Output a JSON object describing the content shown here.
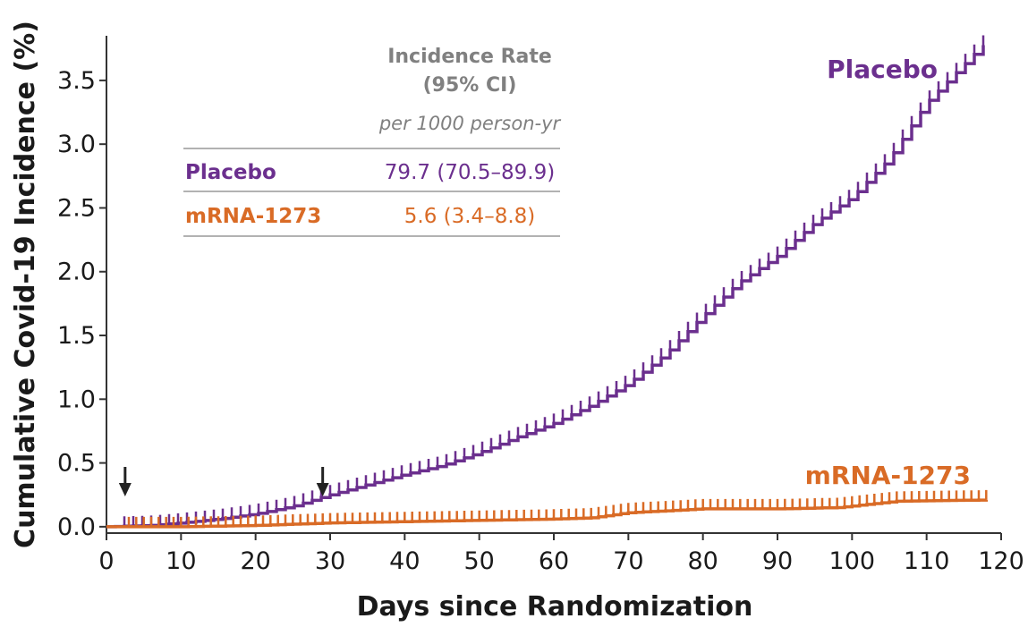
{
  "chart_data": {
    "type": "line",
    "xlabel": "Days since Randomization",
    "ylabel": "Cumulative Covid-19 Incidence (%)",
    "xlim": [
      0,
      120
    ],
    "ylim": [
      -0.05,
      3.85
    ],
    "xticks": [
      0,
      10,
      20,
      30,
      40,
      50,
      60,
      70,
      80,
      90,
      100,
      110,
      120
    ],
    "yticks": [
      0.0,
      0.5,
      1.0,
      1.5,
      2.0,
      2.5,
      3.0,
      3.5
    ],
    "ytick_labels": [
      "0.0",
      "0.5",
      "1.0",
      "1.5",
      "2.0",
      "2.5",
      "3.0",
      "3.5"
    ],
    "colors": {
      "placebo": "#6b2f8e",
      "mrna": "#d96b26",
      "axis": "#333333",
      "legend_gray": "#808080"
    },
    "legend": {
      "header_line1": "Incidence Rate",
      "header_line2": "(95% CI)",
      "subheader": "per 1000 person-yr",
      "rows": [
        {
          "name": "Placebo",
          "value": "79.7 (70.5–89.9)"
        },
        {
          "name": "mRNA-1273",
          "value": "5.6 (3.4–8.8)"
        }
      ]
    },
    "arrows": [
      2.5,
      29
    ],
    "series": [
      {
        "name": "Placebo",
        "x": [
          0,
          6,
          10,
          15,
          20,
          25,
          30,
          35,
          40,
          45,
          50,
          55,
          60,
          65,
          70,
          75,
          80,
          85,
          90,
          95,
          100,
          105,
          110,
          115,
          118
        ],
        "y": [
          0.0,
          0.01,
          0.03,
          0.06,
          0.1,
          0.16,
          0.25,
          0.33,
          0.41,
          0.48,
          0.58,
          0.7,
          0.81,
          0.95,
          1.12,
          1.35,
          1.65,
          1.92,
          2.12,
          2.38,
          2.58,
          2.88,
          3.32,
          3.62,
          3.8
        ]
      },
      {
        "name": "mRNA-1273",
        "x": [
          0,
          5,
          10,
          20,
          30,
          40,
          50,
          60,
          65,
          70,
          80,
          90,
          98,
          106,
          118
        ],
        "y": [
          0.0,
          0.0,
          0.0,
          0.01,
          0.03,
          0.04,
          0.05,
          0.06,
          0.07,
          0.11,
          0.14,
          0.14,
          0.15,
          0.2,
          0.21
        ]
      }
    ],
    "series_labels": [
      "Placebo",
      "mRNA-1273"
    ]
  }
}
